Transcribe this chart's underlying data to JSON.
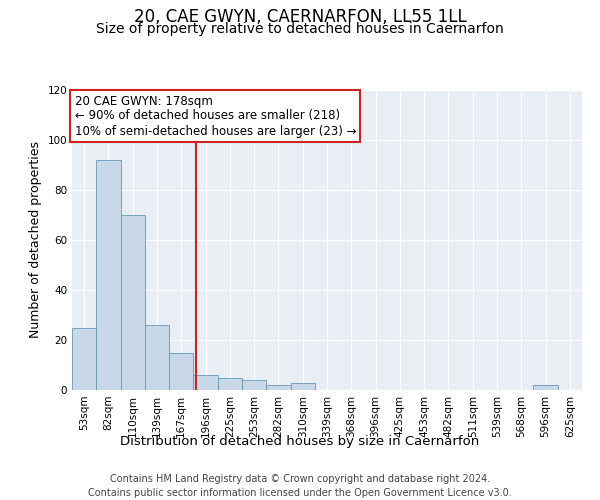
{
  "title": "20, CAE GWYN, CAERNARFON, LL55 1LL",
  "subtitle": "Size of property relative to detached houses in Caernarfon",
  "xlabel": "Distribution of detached houses by size in Caernarfon",
  "ylabel": "Number of detached properties",
  "bins": [
    "53sqm",
    "82sqm",
    "110sqm",
    "139sqm",
    "167sqm",
    "196sqm",
    "225sqm",
    "253sqm",
    "282sqm",
    "310sqm",
    "339sqm",
    "368sqm",
    "396sqm",
    "425sqm",
    "453sqm",
    "482sqm",
    "511sqm",
    "539sqm",
    "568sqm",
    "596sqm",
    "625sqm"
  ],
  "values": [
    25,
    92,
    70,
    26,
    15,
    6,
    5,
    4,
    2,
    3,
    0,
    0,
    0,
    0,
    0,
    0,
    0,
    0,
    0,
    2,
    0
  ],
  "bar_color": "#c8d8e8",
  "bar_edge_color": "#6699bb",
  "ylim": [
    0,
    120
  ],
  "yticks": [
    0,
    20,
    40,
    60,
    80,
    100,
    120
  ],
  "property_label": "20 CAE GWYN: 178sqm",
  "annotation_line1": "← 90% of detached houses are smaller (218)",
  "annotation_line2": "10% of semi-detached houses are larger (23) →",
  "vline_color": "#cc2222",
  "annotation_box_edge_color": "#cc2222",
  "fig_background_color": "#ffffff",
  "ax_background_color": "#e8eef4",
  "footer_line1": "Contains HM Land Registry data © Crown copyright and database right 2024.",
  "footer_line2": "Contains public sector information licensed under the Open Government Licence v3.0.",
  "vline_x_index": 4.6,
  "title_fontsize": 12,
  "subtitle_fontsize": 10,
  "ylabel_fontsize": 9,
  "xlabel_fontsize": 9.5,
  "tick_fontsize": 7.5,
  "footer_fontsize": 7,
  "annotation_fontsize": 8.5
}
